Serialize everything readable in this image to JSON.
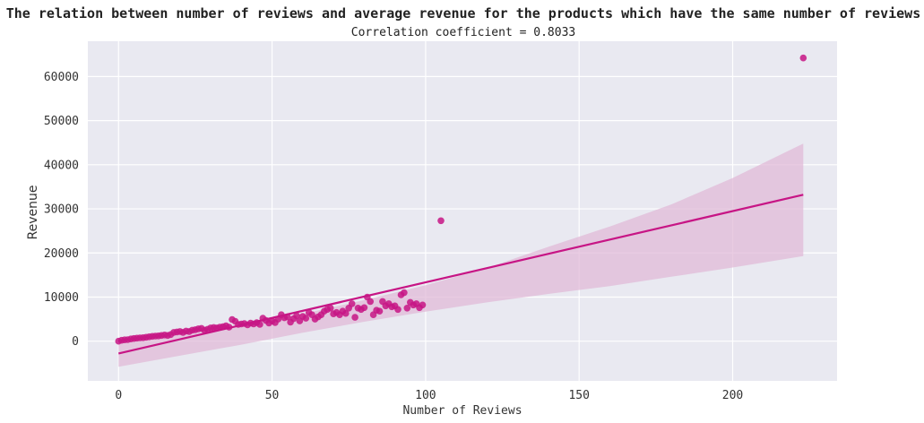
{
  "chart_data": {
    "type": "scatter",
    "title": "The relation between number of reviews and average revenue for the products which have the same number of reviews",
    "subtitle": "Correlation coefficient = 0.8033",
    "xlabel": "Number of Reviews",
    "ylabel": "Revenue",
    "xlim": [
      -10,
      234
    ],
    "ylim": [
      -9000,
      68000
    ],
    "xticks": [
      0,
      50,
      100,
      150,
      200
    ],
    "yticks": [
      0,
      10000,
      20000,
      30000,
      40000,
      50000,
      60000
    ],
    "grid": true,
    "background": "#e9e9f1",
    "grid_color": "#ffffff",
    "point_color": "#c71585",
    "line_color": "#c71585",
    "band_color": "#e0b6d6",
    "regression_line": {
      "x": [
        0,
        223
      ],
      "y": [
        -2800,
        33200
      ]
    },
    "confidence_band": {
      "x": [
        0,
        20,
        40,
        60,
        80,
        100,
        120,
        140,
        160,
        180,
        200,
        223
      ],
      "lower": [
        -5800,
        -3300,
        -800,
        1900,
        4400,
        6700,
        8800,
        10700,
        12500,
        14600,
        16700,
        19300
      ],
      "upper": [
        400,
        1800,
        3700,
        6200,
        9300,
        12700,
        16600,
        21400,
        26000,
        31000,
        37000,
        44800
      ]
    },
    "points": {
      "x": [
        0,
        1,
        2,
        3,
        4,
        5,
        6,
        7,
        8,
        9,
        10,
        11,
        12,
        13,
        14,
        15,
        16,
        17,
        18,
        19,
        20,
        21,
        22,
        23,
        24,
        25,
        26,
        27,
        28,
        29,
        30,
        31,
        32,
        33,
        34,
        35,
        36,
        37,
        38,
        39,
        40,
        41,
        42,
        43,
        44,
        45,
        46,
        47,
        48,
        49,
        50,
        51,
        52,
        53,
        54,
        55,
        56,
        57,
        58,
        59,
        60,
        61,
        62,
        63,
        64,
        65,
        66,
        67,
        68,
        69,
        70,
        71,
        72,
        73,
        74,
        75,
        76,
        77,
        78,
        79,
        80,
        81,
        82,
        83,
        84,
        85,
        86,
        87,
        88,
        89,
        90,
        91,
        92,
        93,
        94,
        95,
        96,
        97,
        98,
        99,
        105,
        223
      ],
      "y": [
        0,
        200,
        300,
        350,
        500,
        600,
        700,
        750,
        800,
        900,
        1000,
        1100,
        1150,
        1200,
        1300,
        1400,
        1300,
        1500,
        2000,
        2100,
        2200,
        2000,
        2300,
        2200,
        2500,
        2600,
        2800,
        2900,
        2500,
        2700,
        3000,
        3100,
        3000,
        3200,
        3300,
        3500,
        3200,
        4900,
        4500,
        3800,
        3900,
        4000,
        3700,
        4100,
        3900,
        4200,
        3800,
        5200,
        4700,
        4100,
        4600,
        4200,
        5000,
        6000,
        5300,
        5500,
        4300,
        5100,
        5800,
        4600,
        5600,
        5200,
        6500,
        6000,
        5000,
        5500,
        6000,
        6800,
        7200,
        7500,
        6200,
        6500,
        6000,
        6800,
        6300,
        7500,
        8500,
        5400,
        7500,
        7200,
        7600,
        10000,
        9000,
        6000,
        7000,
        6800,
        9000,
        8000,
        8500,
        7800,
        8000,
        7200,
        10500,
        11000,
        7500,
        8800,
        8200,
        8500,
        7600,
        8200,
        27300,
        64200
      ]
    }
  }
}
